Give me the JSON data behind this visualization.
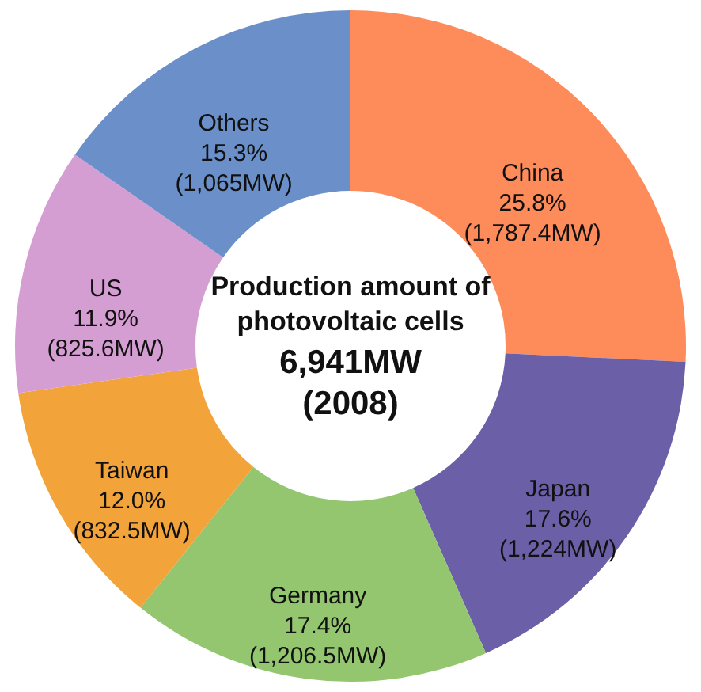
{
  "chart_data": {
    "type": "donut",
    "title": "Production amount of photovoltaic cells",
    "annotations": [
      "6,941MW",
      "(2008)"
    ],
    "categories": [
      "China",
      "Japan",
      "Germany",
      "Taiwan",
      "US",
      "Others"
    ],
    "values": [
      1787.4,
      1224,
      1206.5,
      832.5,
      825.6,
      1065
    ],
    "value_labels": [
      "25.8%\n(1,787.4MW)",
      "17.6%\n(1,224MW)",
      "17.4%\n(1,206.5MW)",
      "12.0%\n(832.5MW)",
      "11.9%\n(825.6MW)",
      "15.3%\n(1,065MW)"
    ],
    "colors": [
      "#fd8c5a",
      "#6b5fa8",
      "#93c66e",
      "#f2a33a",
      "#d59ed3",
      "#6a8fc9"
    ]
  }
}
